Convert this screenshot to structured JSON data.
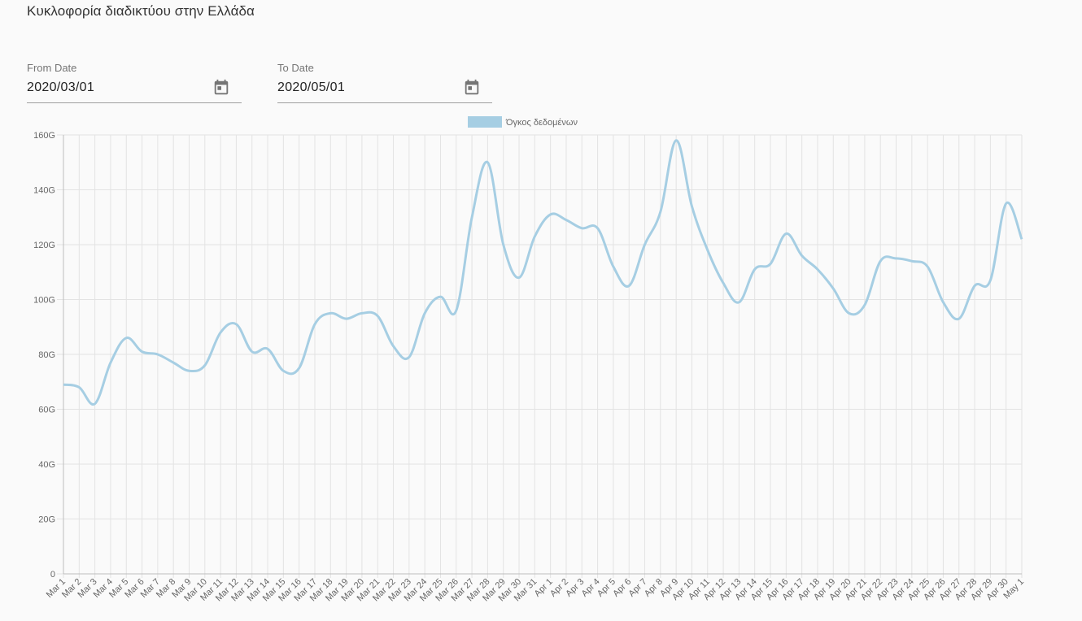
{
  "page": {
    "title": "Κυκλοφορία διαδικτύου στην Ελλάδα"
  },
  "filters": {
    "from": {
      "label": "From Date",
      "value": "2020/03/01",
      "icon": "calendar-icon"
    },
    "to": {
      "label": "To Date",
      "value": "2020/05/01",
      "icon": "calendar-icon"
    }
  },
  "chart_data": {
    "type": "line",
    "title": "",
    "xlabel": "",
    "ylabel": "",
    "categories": [
      "Mar 1",
      "Mar 2",
      "Mar 3",
      "Mar 4",
      "Mar 5",
      "Mar 6",
      "Mar 7",
      "Mar 8",
      "Mar 9",
      "Mar 10",
      "Mar 11",
      "Mar 12",
      "Mar 13",
      "Mar 14",
      "Mar 15",
      "Mar 16",
      "Mar 17",
      "Mar 18",
      "Mar 19",
      "Mar 20",
      "Mar 21",
      "Mar 22",
      "Mar 23",
      "Mar 24",
      "Mar 25",
      "Mar 26",
      "Mar 27",
      "Mar 28",
      "Mar 29",
      "Mar 30",
      "Mar 31",
      "Apr 1",
      "Apr 2",
      "Apr 3",
      "Apr 4",
      "Apr 5",
      "Apr 6",
      "Apr 7",
      "Apr 8",
      "Apr 9",
      "Apr 10",
      "Apr 11",
      "Apr 12",
      "Apr 13",
      "Apr 14",
      "Apr 15",
      "Apr 16",
      "Apr 17",
      "Apr 18",
      "Apr 19",
      "Apr 20",
      "Apr 21",
      "Apr 22",
      "Apr 23",
      "Apr 24",
      "Apr 25",
      "Apr 26",
      "Apr 27",
      "Apr 28",
      "Apr 29",
      "Apr 30",
      "May 1"
    ],
    "series": [
      {
        "name": "Όγκος δεδομένων",
        "color": "#a6cee3",
        "values": [
          69,
          68,
          62,
          77,
          86,
          81,
          80,
          77,
          74,
          76,
          88,
          91,
          81,
          82,
          74,
          75,
          91,
          95,
          93,
          95,
          94,
          83,
          79,
          95,
          101,
          96,
          130,
          150,
          120,
          108,
          123,
          131,
          129,
          126,
          126,
          112,
          105,
          120,
          132,
          158,
          134,
          118,
          106,
          99,
          111,
          113,
          124,
          116,
          111,
          104,
          95,
          98,
          114,
          115,
          114,
          112,
          99,
          93,
          105,
          107,
          135,
          122
        ]
      }
    ],
    "ylim": [
      0,
      160
    ],
    "yticks": [
      {
        "value": 0,
        "label": "0"
      },
      {
        "value": 20,
        "label": "20G"
      },
      {
        "value": 40,
        "label": "40G"
      },
      {
        "value": 60,
        "label": "60G"
      },
      {
        "value": 80,
        "label": "80G"
      },
      {
        "value": 100,
        "label": "100G"
      },
      {
        "value": 120,
        "label": "120G"
      },
      {
        "value": 140,
        "label": "140G"
      },
      {
        "value": 160,
        "label": "160G"
      }
    ],
    "grid": true,
    "legend": "top-center"
  }
}
